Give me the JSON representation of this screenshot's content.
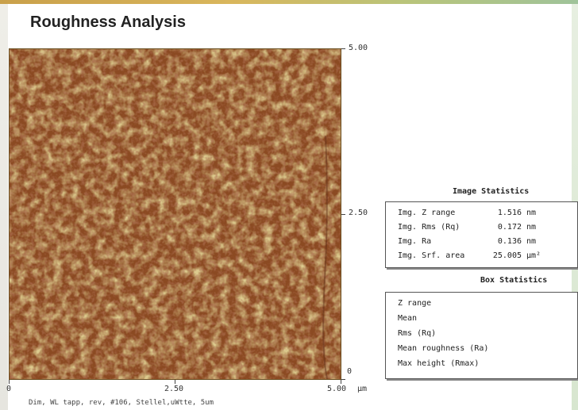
{
  "page": {
    "title": "Roughness Analysis"
  },
  "image": {
    "name": "afm-height-image",
    "colors": {
      "dark": "#7a3b1e",
      "mid": "#9a6a2c",
      "light": "#b8a54a"
    }
  },
  "axes": {
    "right": {
      "top": "5.00",
      "mid": "2.50",
      "bottom": "0"
    },
    "bottom": {
      "left": "0",
      "mid": "2.50",
      "right": "5.00",
      "unit": "µm"
    }
  },
  "caption": "Dim, WL tapp, rev, #106, Stellel,uWtte, 5um",
  "image_statistics": {
    "title": "Image Statistics",
    "rows": [
      {
        "label": "Img. Z range",
        "value": "1.516",
        "unit": "nm"
      },
      {
        "label": "Img. Rms (Rq)",
        "value": "0.172",
        "unit": "nm"
      },
      {
        "label": "Img. Ra",
        "value": "0.136",
        "unit": "nm"
      },
      {
        "label": "Img. Srf. area",
        "value": "25.005",
        "unit": "µm²"
      }
    ]
  },
  "box_statistics": {
    "title": "Box Statistics",
    "rows": [
      {
        "label": "Z range"
      },
      {
        "label": "Mean"
      },
      {
        "label": "Rms (Rq)"
      },
      {
        "label": "Mean roughness (Ra)"
      },
      {
        "label": "Max height (Rmax)"
      }
    ]
  }
}
